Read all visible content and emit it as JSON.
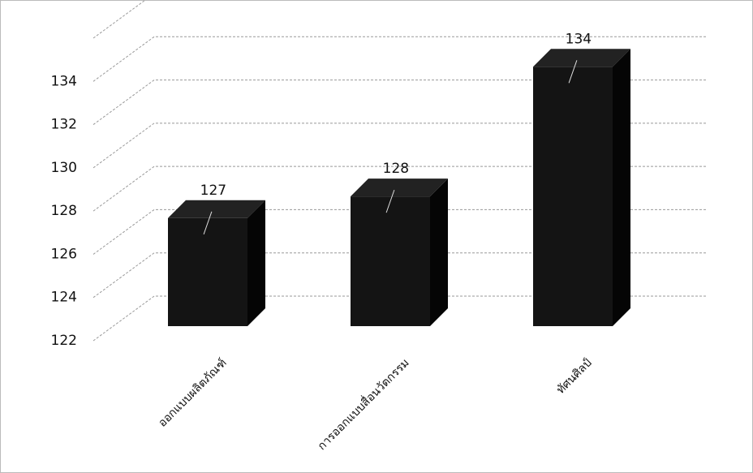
{
  "chart_data": {
    "type": "bar3d",
    "categories": [
      "ออกแบบผลิตภัณฑ์",
      "การออกแบบสื่อนวัตกรรม",
      "ทัศนศิลป์"
    ],
    "values": [
      127,
      128,
      134
    ],
    "color": "#141414",
    "ylim": [
      122,
      136
    ],
    "yticks": [
      122,
      124,
      126,
      128,
      130,
      132,
      134
    ],
    "grid": true
  }
}
